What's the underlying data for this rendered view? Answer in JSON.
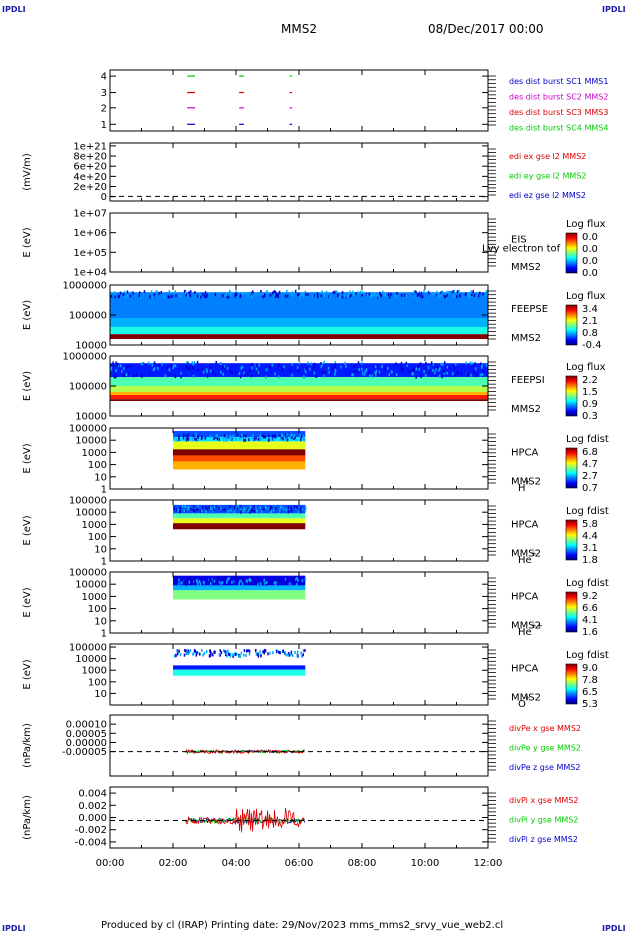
{
  "corners": {
    "tl": "IPDLI",
    "tr": "IPDLI",
    "bl": "IPDLI",
    "br": "IPDLI"
  },
  "header": {
    "spacecraft": "MMS2",
    "datetime": "08/Dec/2017 00:00"
  },
  "footer": {
    "text": "Produced by cl (IRAP)   Printing date: 29/Nov/2023   mms_mms2_srvy_vue_web2.cl"
  },
  "colors": {
    "mms1": "#0000cc",
    "mms2": "#cc00cc",
    "mms3": "#dd0000",
    "mms4": "#00cc00",
    "dash": "#000000"
  },
  "chart_data": {
    "type": "stacked-timeseries",
    "xaxis": {
      "ticks": [
        "00:00",
        "02:00",
        "04:00",
        "06:00",
        "08:00",
        "10:00",
        "12:00"
      ],
      "range_hours": [
        0,
        12
      ]
    },
    "panels": [
      {
        "id": "burst",
        "type": "timeline",
        "ylabel": "",
        "yticks": [
          "4",
          "3",
          "2",
          "1"
        ],
        "labels": [
          {
            "text": "des dist burst SC1 MMS1",
            "color": "mms1"
          },
          {
            "text": "des dist burst SC2 MMS2",
            "color": "mms2"
          },
          {
            "text": "des dist burst SC3 MMS3",
            "color": "mms3"
          },
          {
            "text": "des dist burst SC4 MMS4",
            "color": "mms4"
          }
        ],
        "segments_hours": [
          [
            2.45,
            2.7
          ],
          [
            4.1,
            4.25
          ],
          [
            5.7,
            5.78
          ]
        ]
      },
      {
        "id": "edi",
        "type": "line",
        "ylabel": "(mV/m)",
        "yticks": [
          "1e+21",
          "8e+20",
          "6e+20",
          "4e+20",
          "2e+20",
          "0"
        ],
        "labels": [
          {
            "text": "edi ex gse l2 MMS2",
            "color": "mms3"
          },
          {
            "text": "edi ey gse l2 MMS2",
            "color": "mms4"
          },
          {
            "text": "edi ez gse l2 MMS2",
            "color": "mms1"
          }
        ],
        "values": []
      },
      {
        "id": "eis",
        "type": "spectrogram",
        "ylabel": "E (eV)",
        "yticks": [
          "1e+07",
          "1e+06",
          "1e+05",
          "1e+04"
        ],
        "name": "EIS",
        "craft": "MMS2",
        "overlay": "Lvy electron tof",
        "cbar_title": "Log flux",
        "cbar_ticks": [
          "0.0",
          "0.0",
          "0.0",
          "0.0"
        ]
      },
      {
        "id": "feepse",
        "type": "spectrogram",
        "ylabel": "E (eV)",
        "yticks": [
          "1000000",
          "100000",
          "10000"
        ],
        "name": "FEEPSE",
        "craft": "MMS2",
        "cbar_title": "Log flux",
        "cbar_ticks": [
          "3.4",
          "2.1",
          "0.8",
          "-0.4"
        ],
        "coverage_hours": [
          0,
          12
        ]
      },
      {
        "id": "feepsi",
        "type": "spectrogram",
        "ylabel": "E (eV)",
        "yticks": [
          "1000000",
          "100000",
          "10000"
        ],
        "name": "FEEPSI",
        "craft": "MMS2",
        "cbar_title": "Log flux",
        "cbar_ticks": [
          "2.2",
          "1.5",
          "0.9",
          "0.3"
        ],
        "coverage_hours": [
          0,
          12
        ]
      },
      {
        "id": "hpca_h",
        "type": "spectrogram",
        "ylabel": "E (eV)",
        "yticks": [
          "100000",
          "10000",
          "1000",
          "100",
          "10",
          "1"
        ],
        "name": "HPCA",
        "craft": "MMS2",
        "species": "H",
        "sup": "+",
        "cbar_title": "Log fdist",
        "cbar_ticks": [
          "6.8",
          "4.7",
          "2.7",
          "0.7"
        ],
        "coverage_hours": [
          2.0,
          6.2
        ]
      },
      {
        "id": "hpca_he",
        "type": "spectrogram",
        "ylabel": "E (eV)",
        "yticks": [
          "100000",
          "10000",
          "1000",
          "100",
          "10",
          "1"
        ],
        "name": "HPCA",
        "craft": "MMS2",
        "species": "He",
        "sup": "+",
        "cbar_title": "Log fdist",
        "cbar_ticks": [
          "5.8",
          "4.4",
          "3.1",
          "1.8"
        ],
        "coverage_hours": [
          2.0,
          6.2
        ]
      },
      {
        "id": "hpca_he2",
        "type": "spectrogram",
        "ylabel": "E (eV)",
        "yticks": [
          "100000",
          "10000",
          "1000",
          "100",
          "10",
          "1"
        ],
        "name": "HPCA",
        "craft": "MMS2",
        "species": "He",
        "sup": "++",
        "cbar_title": "Log fdist",
        "cbar_ticks": [
          "9.2",
          "6.6",
          "4.1",
          "1.6"
        ],
        "coverage_hours": [
          2.0,
          6.2
        ]
      },
      {
        "id": "hpca_o",
        "type": "spectrogram",
        "ylabel": "E (eV)",
        "yticks": [
          "100000",
          "10000",
          "1000",
          "100",
          "10"
        ],
        "name": "HPCA",
        "craft": "MMS2",
        "species": "O",
        "sup": "+",
        "cbar_title": "Log fdist",
        "cbar_ticks": [
          "9.0",
          "7.8",
          "6.5",
          "5.3"
        ],
        "coverage_hours": [
          2.0,
          6.2
        ]
      },
      {
        "id": "divpe",
        "type": "line",
        "ylabel": "(nPa/km)",
        "yticks": [
          "0.00010",
          "0.00005",
          "0.00000",
          "-0.00005"
        ],
        "labels": [
          {
            "text": "divPe x gse MMS2",
            "color": "mms3"
          },
          {
            "text": "divPe y gse MMS2",
            "color": "mms4"
          },
          {
            "text": "divPe z gse MMS2",
            "color": "mms1"
          }
        ],
        "coverage_hours": [
          2.4,
          6.2
        ]
      },
      {
        "id": "divpi",
        "type": "line",
        "ylabel": "(nPa/km)",
        "yticks": [
          "0.004",
          "0.002",
          "0.000",
          "-0.002",
          "-0.004"
        ],
        "labels": [
          {
            "text": "divPi x gse MMS2",
            "color": "mms3"
          },
          {
            "text": "divPi y gse MMS2",
            "color": "mms4"
          },
          {
            "text": "divPi z gse MMS2",
            "color": "mms1"
          }
        ],
        "coverage_hours": [
          2.4,
          6.2
        ]
      }
    ]
  }
}
